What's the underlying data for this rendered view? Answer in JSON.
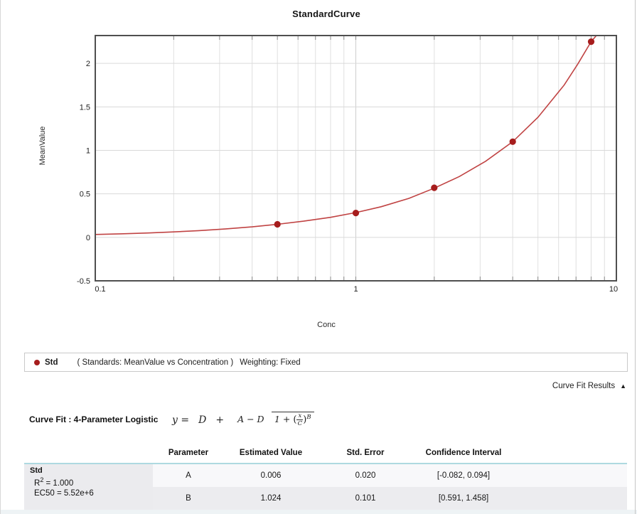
{
  "panel": {
    "title": "StandardCurve"
  },
  "chart_data": {
    "type": "scatter",
    "title": "StandardCurve",
    "xlabel": "Conc",
    "ylabel": "MeanValue",
    "x_scale": "log",
    "xlim": [
      0.1,
      10
    ],
    "ylim": [
      -0.5,
      2.32
    ],
    "grid": true,
    "x_ticks": [
      {
        "value": 0.1,
        "label": "0.1",
        "dx": 7
      },
      {
        "value": 1,
        "label": "1",
        "dx": 0
      },
      {
        "value": 10,
        "label": "10",
        "dx": -4
      }
    ],
    "x_minor": [
      0.2,
      0.3,
      0.4,
      0.5,
      0.6,
      0.7,
      0.8,
      0.9,
      2,
      3,
      4,
      5,
      6,
      7,
      8,
      9
    ],
    "y_ticks": [
      {
        "value": -0.5,
        "label": "-0.5"
      },
      {
        "value": 0,
        "label": "0"
      },
      {
        "value": 0.5,
        "label": "0.5"
      },
      {
        "value": 1,
        "label": "1"
      },
      {
        "value": 1.5,
        "label": "1.5"
      },
      {
        "value": 2,
        "label": "2"
      }
    ],
    "y_gridlines": [
      0,
      0.5,
      1,
      1.5,
      2
    ],
    "series": [
      {
        "name": "Std",
        "x": [
          0.5,
          1,
          2,
          4,
          8
        ],
        "y": [
          0.15,
          0.28,
          0.57,
          1.1,
          2.25
        ]
      }
    ],
    "curve_samples": {
      "x": [
        0.1,
        0.125,
        0.16,
        0.2,
        0.25,
        0.315,
        0.4,
        0.5,
        0.63,
        0.8,
        1.0,
        1.25,
        1.6,
        2.0,
        2.5,
        3.15,
        4.0,
        5.0,
        6.3,
        7.1,
        8.0,
        8.35
      ],
      "y": [
        0.033,
        0.04,
        0.05,
        0.062,
        0.077,
        0.096,
        0.12,
        0.15,
        0.186,
        0.23,
        0.285,
        0.352,
        0.448,
        0.565,
        0.7,
        0.875,
        1.1,
        1.38,
        1.75,
        1.99,
        2.25,
        2.315
      ]
    },
    "colors": {
      "point": "#a61d1d",
      "line": "#c04343",
      "grid_minor": "#e0e0e0",
      "grid_major": "#cdcdcd",
      "border": "#4f4f4f",
      "tick": "#8a8a8a"
    },
    "legend_position": "bottom"
  },
  "legend": {
    "name": "Std",
    "scope": "( Standards: MeanValue vs Concentration )",
    "weighting": "Weighting: Fixed",
    "marker_color": "#a61d1d"
  },
  "curve_fit_results": {
    "label": "Curve Fit Results",
    "collapse_icon": "▲"
  },
  "curve_fit": {
    "label": "Curve Fit : 4-Parameter Logistic",
    "formula": {
      "lhs": "y =",
      "d_term": "D",
      "plus": "+",
      "numerator": "A − D",
      "den_prefix": "1 +",
      "inner_num": "x",
      "inner_den": "C",
      "exponent": "B"
    }
  },
  "results_table": {
    "headers": [
      "Parameter",
      "Estimated Value",
      "Std. Error",
      "Confidence Interval"
    ],
    "group": {
      "name": "Std",
      "r2_base": "R",
      "r2_sup": "2",
      "r2_rest": " = 1.000",
      "ec50": "EC50 = 5.52e+6"
    },
    "rows": [
      {
        "parameter": "A",
        "estimated_value": "0.006",
        "std_error": "0.020",
        "confidence_interval": "[-0.082, 0.094]"
      },
      {
        "parameter": "B",
        "estimated_value": "1.024",
        "std_error": "0.101",
        "confidence_interval": "[0.591, 1.458]"
      }
    ],
    "header_rule_color": "#aed9e0"
  }
}
